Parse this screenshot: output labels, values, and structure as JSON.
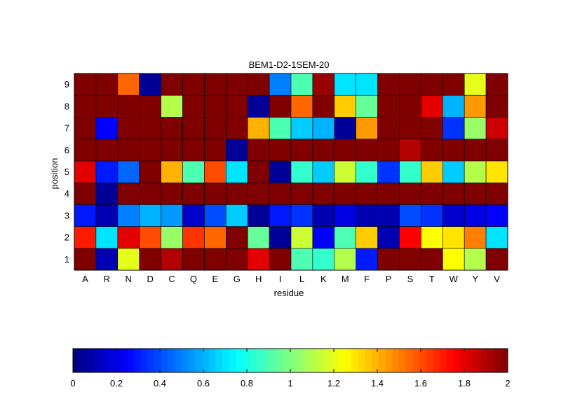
{
  "chart_data": {
    "type": "heatmap",
    "title": "BEM1-D2-1SEM-20",
    "xlabel": "residue",
    "ylabel": "position",
    "x_categories": [
      "A",
      "R",
      "N",
      "D",
      "C",
      "Q",
      "E",
      "G",
      "H",
      "I",
      "L",
      "K",
      "M",
      "F",
      "P",
      "S",
      "T",
      "W",
      "Y",
      "V"
    ],
    "y_categories": [
      "1",
      "2",
      "3",
      "4",
      "5",
      "6",
      "7",
      "8",
      "9"
    ],
    "values": [
      [
        2.0,
        0.1,
        1.2,
        2.0,
        1.9,
        2.0,
        2.0,
        2.0,
        1.8,
        2.0,
        0.9,
        0.85,
        1.1,
        0.3,
        2.0,
        2.0,
        2.0,
        1.25,
        1.1,
        2.0
      ],
      [
        1.7,
        0.7,
        1.8,
        1.6,
        1.05,
        1.65,
        1.55,
        2.0,
        0.95,
        0.05,
        1.15,
        0.25,
        0.9,
        1.35,
        0.1,
        1.75,
        1.25,
        1.3,
        1.5,
        0.7
      ],
      [
        0.3,
        0.1,
        0.5,
        0.6,
        0.55,
        0.15,
        0.4,
        0.65,
        0.05,
        0.3,
        0.35,
        0.1,
        0.2,
        0.1,
        0.1,
        0.4,
        0.35,
        0.15,
        0.2,
        0.25
      ],
      [
        2.0,
        0.05,
        2.0,
        2.0,
        2.0,
        2.0,
        2.0,
        2.0,
        2.0,
        2.0,
        2.0,
        2.0,
        2.0,
        2.0,
        2.0,
        2.0,
        2.0,
        2.0,
        2.0,
        2.0
      ],
      [
        1.8,
        0.3,
        0.45,
        2.0,
        1.4,
        0.9,
        1.6,
        0.7,
        2.0,
        0.05,
        0.85,
        0.65,
        1.15,
        0.85,
        0.35,
        0.85,
        1.35,
        0.65,
        1.1,
        1.3
      ],
      [
        2.0,
        2.0,
        2.0,
        2.0,
        2.0,
        2.0,
        2.0,
        0.05,
        2.0,
        2.0,
        2.0,
        2.0,
        2.0,
        2.0,
        2.0,
        1.9,
        2.0,
        2.0,
        2.0,
        2.0
      ],
      [
        2.0,
        0.25,
        2.0,
        2.0,
        2.0,
        2.0,
        2.0,
        2.0,
        1.4,
        0.9,
        0.65,
        0.6,
        0.05,
        1.45,
        2.0,
        2.0,
        2.0,
        0.35,
        1.05,
        1.85
      ],
      [
        2.0,
        2.0,
        2.0,
        2.0,
        1.1,
        2.0,
        2.0,
        2.0,
        0.05,
        2.0,
        1.55,
        2.0,
        1.35,
        0.95,
        2.0,
        2.0,
        1.8,
        0.6,
        1.45,
        2.0
      ],
      [
        2.0,
        2.0,
        1.55,
        0.05,
        2.0,
        2.0,
        2.0,
        2.0,
        2.0,
        0.5,
        0.9,
        1.95,
        0.7,
        0.7,
        2.0,
        2.0,
        2.0,
        2.0,
        1.2,
        2.0
      ]
    ],
    "colorscale": "jet",
    "zlim": [
      0,
      2
    ],
    "colorbar": {
      "placement": "bottom",
      "tick_labels": [
        "0",
        "0.2",
        "0.4",
        "0.6",
        "0.8",
        "1",
        "1.2",
        "1.4",
        "1.6",
        "1.8",
        "2"
      ],
      "tick_values": [
        0,
        0.2,
        0.4,
        0.6,
        0.8,
        1.0,
        1.2,
        1.4,
        1.6,
        1.8,
        2.0
      ]
    },
    "grid": true
  }
}
